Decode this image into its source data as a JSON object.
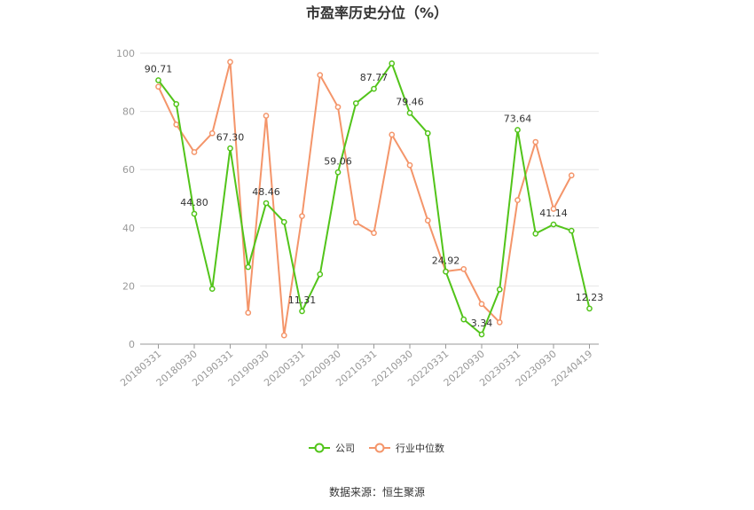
{
  "chart_data": {
    "type": "line",
    "title": "市盈率历史分位（%）",
    "ylim": [
      0,
      100
    ],
    "yticks": [
      0,
      20,
      40,
      60,
      80,
      100
    ],
    "x_tick_labels": [
      "20180331",
      "20180930",
      "20190331",
      "20190930",
      "20200331",
      "20200930",
      "20210331",
      "20210930",
      "20220331",
      "20220930",
      "20230331",
      "20230930",
      "20240419"
    ],
    "grid": true,
    "legend_position": "bottom",
    "series": [
      {
        "name": "公司",
        "color": "#52c41a",
        "values": [
          90.71,
          82.5,
          44.8,
          19.0,
          67.3,
          26.5,
          48.46,
          42.0,
          11.31,
          24.0,
          59.06,
          82.8,
          87.77,
          96.5,
          79.46,
          72.5,
          24.92,
          8.5,
          3.34,
          18.8,
          73.64,
          38.0,
          41.14,
          39.0,
          12.23
        ],
        "data_labels": [
          {
            "index": 0,
            "text": "90.71"
          },
          {
            "index": 2,
            "text": "44.80"
          },
          {
            "index": 4,
            "text": "67.30"
          },
          {
            "index": 6,
            "text": "48.46"
          },
          {
            "index": 8,
            "text": "11.31"
          },
          {
            "index": 10,
            "text": "59.06"
          },
          {
            "index": 12,
            "text": "87.77"
          },
          {
            "index": 14,
            "text": "79.46"
          },
          {
            "index": 16,
            "text": "24.92"
          },
          {
            "index": 18,
            "text": "3.34"
          },
          {
            "index": 20,
            "text": "73.64"
          },
          {
            "index": 22,
            "text": "41.14"
          },
          {
            "index": 24,
            "text": "12.23"
          }
        ]
      },
      {
        "name": "行业中位数",
        "color": "#f4956a",
        "values": [
          88.5,
          75.5,
          66.0,
          72.5,
          97.0,
          10.8,
          78.5,
          3.0,
          44.0,
          92.5,
          81.5,
          41.8,
          38.2,
          72.0,
          61.5,
          42.5,
          25.0,
          25.8,
          13.8,
          7.5,
          49.5,
          69.5,
          46.5,
          58.0,
          null
        ]
      }
    ]
  },
  "source_text": "数据来源：恒生聚源"
}
